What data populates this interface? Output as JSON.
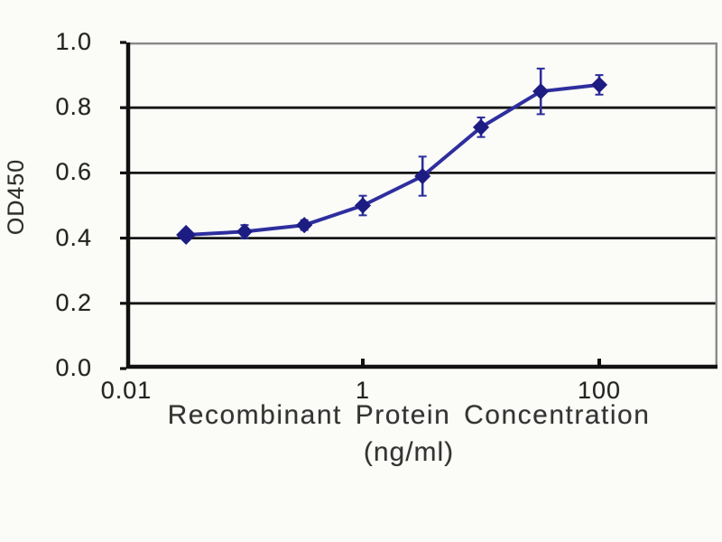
{
  "chart_data": {
    "type": "line",
    "title": "",
    "xlabel": "Recombinant Protein Concentration",
    "xlabel_units": "(ng/ml)",
    "ylabel": "OD450",
    "x_scale": "log",
    "xlim": [
      0.01,
      1000
    ],
    "ylim": [
      0.0,
      1.0
    ],
    "grid": "horizontal",
    "legend": "none",
    "marker": "diamond",
    "x": [
      0.032,
      0.1,
      0.32,
      1,
      3.2,
      10,
      32,
      100
    ],
    "y": [
      0.41,
      0.42,
      0.44,
      0.5,
      0.59,
      0.74,
      0.85,
      0.87
    ],
    "y_err": [
      0.01,
      0.02,
      0.015,
      0.03,
      0.06,
      0.03,
      0.07,
      0.03
    ],
    "x_ticks": [
      {
        "value": 0.01,
        "label": "0.01"
      },
      {
        "value": 1,
        "label": "1"
      },
      {
        "value": 100,
        "label": "100"
      }
    ],
    "y_ticks": [
      {
        "value": 0.0,
        "label": "0.0"
      },
      {
        "value": 0.2,
        "label": "0.2"
      },
      {
        "value": 0.4,
        "label": "0.4"
      },
      {
        "value": 0.6,
        "label": "0.6"
      },
      {
        "value": 0.8,
        "label": "0.8"
      },
      {
        "value": 1.0,
        "label": "1.0"
      }
    ],
    "colors": {
      "line": "#2e2e9e",
      "marker": "#1c1c82",
      "axis": "#111111",
      "grid": "#151515",
      "frame": "#8a8a8a",
      "text": "#2d2d2d",
      "background": "#fbfbf8"
    }
  }
}
